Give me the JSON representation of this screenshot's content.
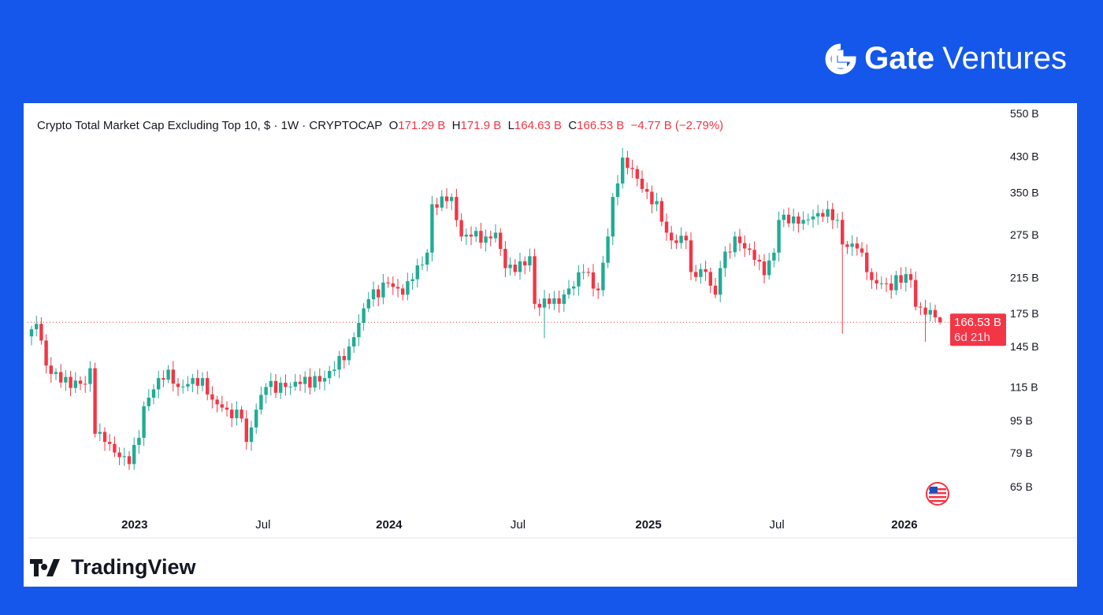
{
  "brand": {
    "name_bold": "Gate",
    "name_light": "Ventures"
  },
  "footer": {
    "logo_text": "TradingView"
  },
  "colors": {
    "up": "#22ab94",
    "down": "#f23645",
    "background": "#1457ea"
  },
  "chart_data": {
    "type": "candlestick",
    "title": "Crypto Total Market Cap Excluding Top 10, $ · 1W · CRYPTOCAP",
    "ohlc_header": {
      "o_label": "O",
      "o": "171.29 B",
      "h_label": "H",
      "h": "171.9 B",
      "l_label": "L",
      "l": "164.63 B",
      "c_label": "C",
      "c": "166.53 B",
      "change": "−4.77 B (−2.79%)"
    },
    "y_scale": "log",
    "unit": "B USD",
    "ylim": [
      55,
      560
    ],
    "y_ticks": [
      "550 B",
      "430 B",
      "350 B",
      "275 B",
      "215 B",
      "175 B",
      "145 B",
      "115 B",
      "95 B",
      "79 B",
      "65 B"
    ],
    "y_tick_values": [
      550,
      430,
      350,
      275,
      215,
      175,
      145,
      115,
      95,
      79,
      65
    ],
    "x_ticks": [
      {
        "label": "2023",
        "week": 21.1,
        "bold": true
      },
      {
        "label": "Jul",
        "week": 47.4,
        "bold": false
      },
      {
        "label": "2024",
        "week": 73.2,
        "bold": true
      },
      {
        "label": "Jul",
        "week": 99.6,
        "bold": false
      },
      {
        "label": "2025",
        "week": 126.3,
        "bold": true
      },
      {
        "label": "Jul",
        "week": 152.6,
        "bold": false
      },
      {
        "label": "2026",
        "week": 178.7,
        "bold": true
      }
    ],
    "weekly_close_keypoints": [
      [
        0,
        160
      ],
      [
        1,
        165
      ],
      [
        2,
        150
      ],
      [
        3,
        130
      ],
      [
        6,
        118
      ],
      [
        11,
        117
      ],
      [
        12,
        128
      ],
      [
        13,
        88
      ],
      [
        15,
        84
      ],
      [
        18,
        77
      ],
      [
        20,
        74
      ],
      [
        22,
        86
      ],
      [
        23,
        103
      ],
      [
        26,
        121
      ],
      [
        28,
        127
      ],
      [
        30,
        115
      ],
      [
        32,
        117
      ],
      [
        35,
        121
      ],
      [
        37,
        107
      ],
      [
        40,
        101
      ],
      [
        43,
        96
      ],
      [
        44,
        84
      ],
      [
        46,
        101
      ],
      [
        48,
        115
      ],
      [
        52,
        115
      ],
      [
        55,
        117
      ],
      [
        60,
        121
      ],
      [
        62,
        127
      ],
      [
        65,
        145
      ],
      [
        67,
        166
      ],
      [
        69,
        190
      ],
      [
        73,
        208
      ],
      [
        76,
        195
      ],
      [
        78,
        213
      ],
      [
        81,
        248
      ],
      [
        82,
        327
      ],
      [
        85,
        333
      ],
      [
        86,
        341
      ],
      [
        88,
        272
      ],
      [
        90,
        272
      ],
      [
        93,
        272
      ],
      [
        95,
        278
      ],
      [
        97,
        227
      ],
      [
        99,
        222
      ],
      [
        102,
        243
      ],
      [
        103,
        185
      ],
      [
        106,
        185
      ],
      [
        108,
        185
      ],
      [
        110,
        202
      ],
      [
        113,
        222
      ],
      [
        116,
        200
      ],
      [
        118,
        272
      ],
      [
        119,
        341
      ],
      [
        121,
        427
      ],
      [
        123,
        400
      ],
      [
        125,
        357
      ],
      [
        127,
        327
      ],
      [
        128,
        333
      ],
      [
        130,
        278
      ],
      [
        131,
        266
      ],
      [
        134,
        266
      ],
      [
        135,
        222
      ],
      [
        138,
        222
      ],
      [
        140,
        195
      ],
      [
        141,
        227
      ],
      [
        144,
        272
      ],
      [
        146,
        254
      ],
      [
        148,
        238
      ],
      [
        150,
        218
      ],
      [
        152,
        248
      ],
      [
        153,
        299
      ],
      [
        156,
        305
      ],
      [
        158,
        299
      ],
      [
        160,
        305
      ],
      [
        161,
        311
      ],
      [
        163,
        318
      ],
      [
        165,
        299
      ],
      [
        166,
        260
      ],
      [
        169,
        254
      ],
      [
        170,
        248
      ],
      [
        172,
        212
      ],
      [
        174,
        208
      ],
      [
        176,
        200
      ],
      [
        177,
        218
      ],
      [
        180,
        212
      ],
      [
        181,
        182
      ],
      [
        183,
        174
      ],
      [
        185,
        171.29
      ],
      [
        186,
        166.53
      ]
    ],
    "notable_wicks": [
      [
        105,
        "low",
        152
      ],
      [
        121,
        "high",
        451
      ],
      [
        166,
        "low",
        156
      ],
      [
        183,
        "low",
        149
      ]
    ],
    "last_candle": {
      "open": 171.29,
      "high": 171.9,
      "low": 164.63,
      "close": 166.53
    },
    "last_price_label": "166.53 B",
    "countdown": "6d 21h"
  }
}
